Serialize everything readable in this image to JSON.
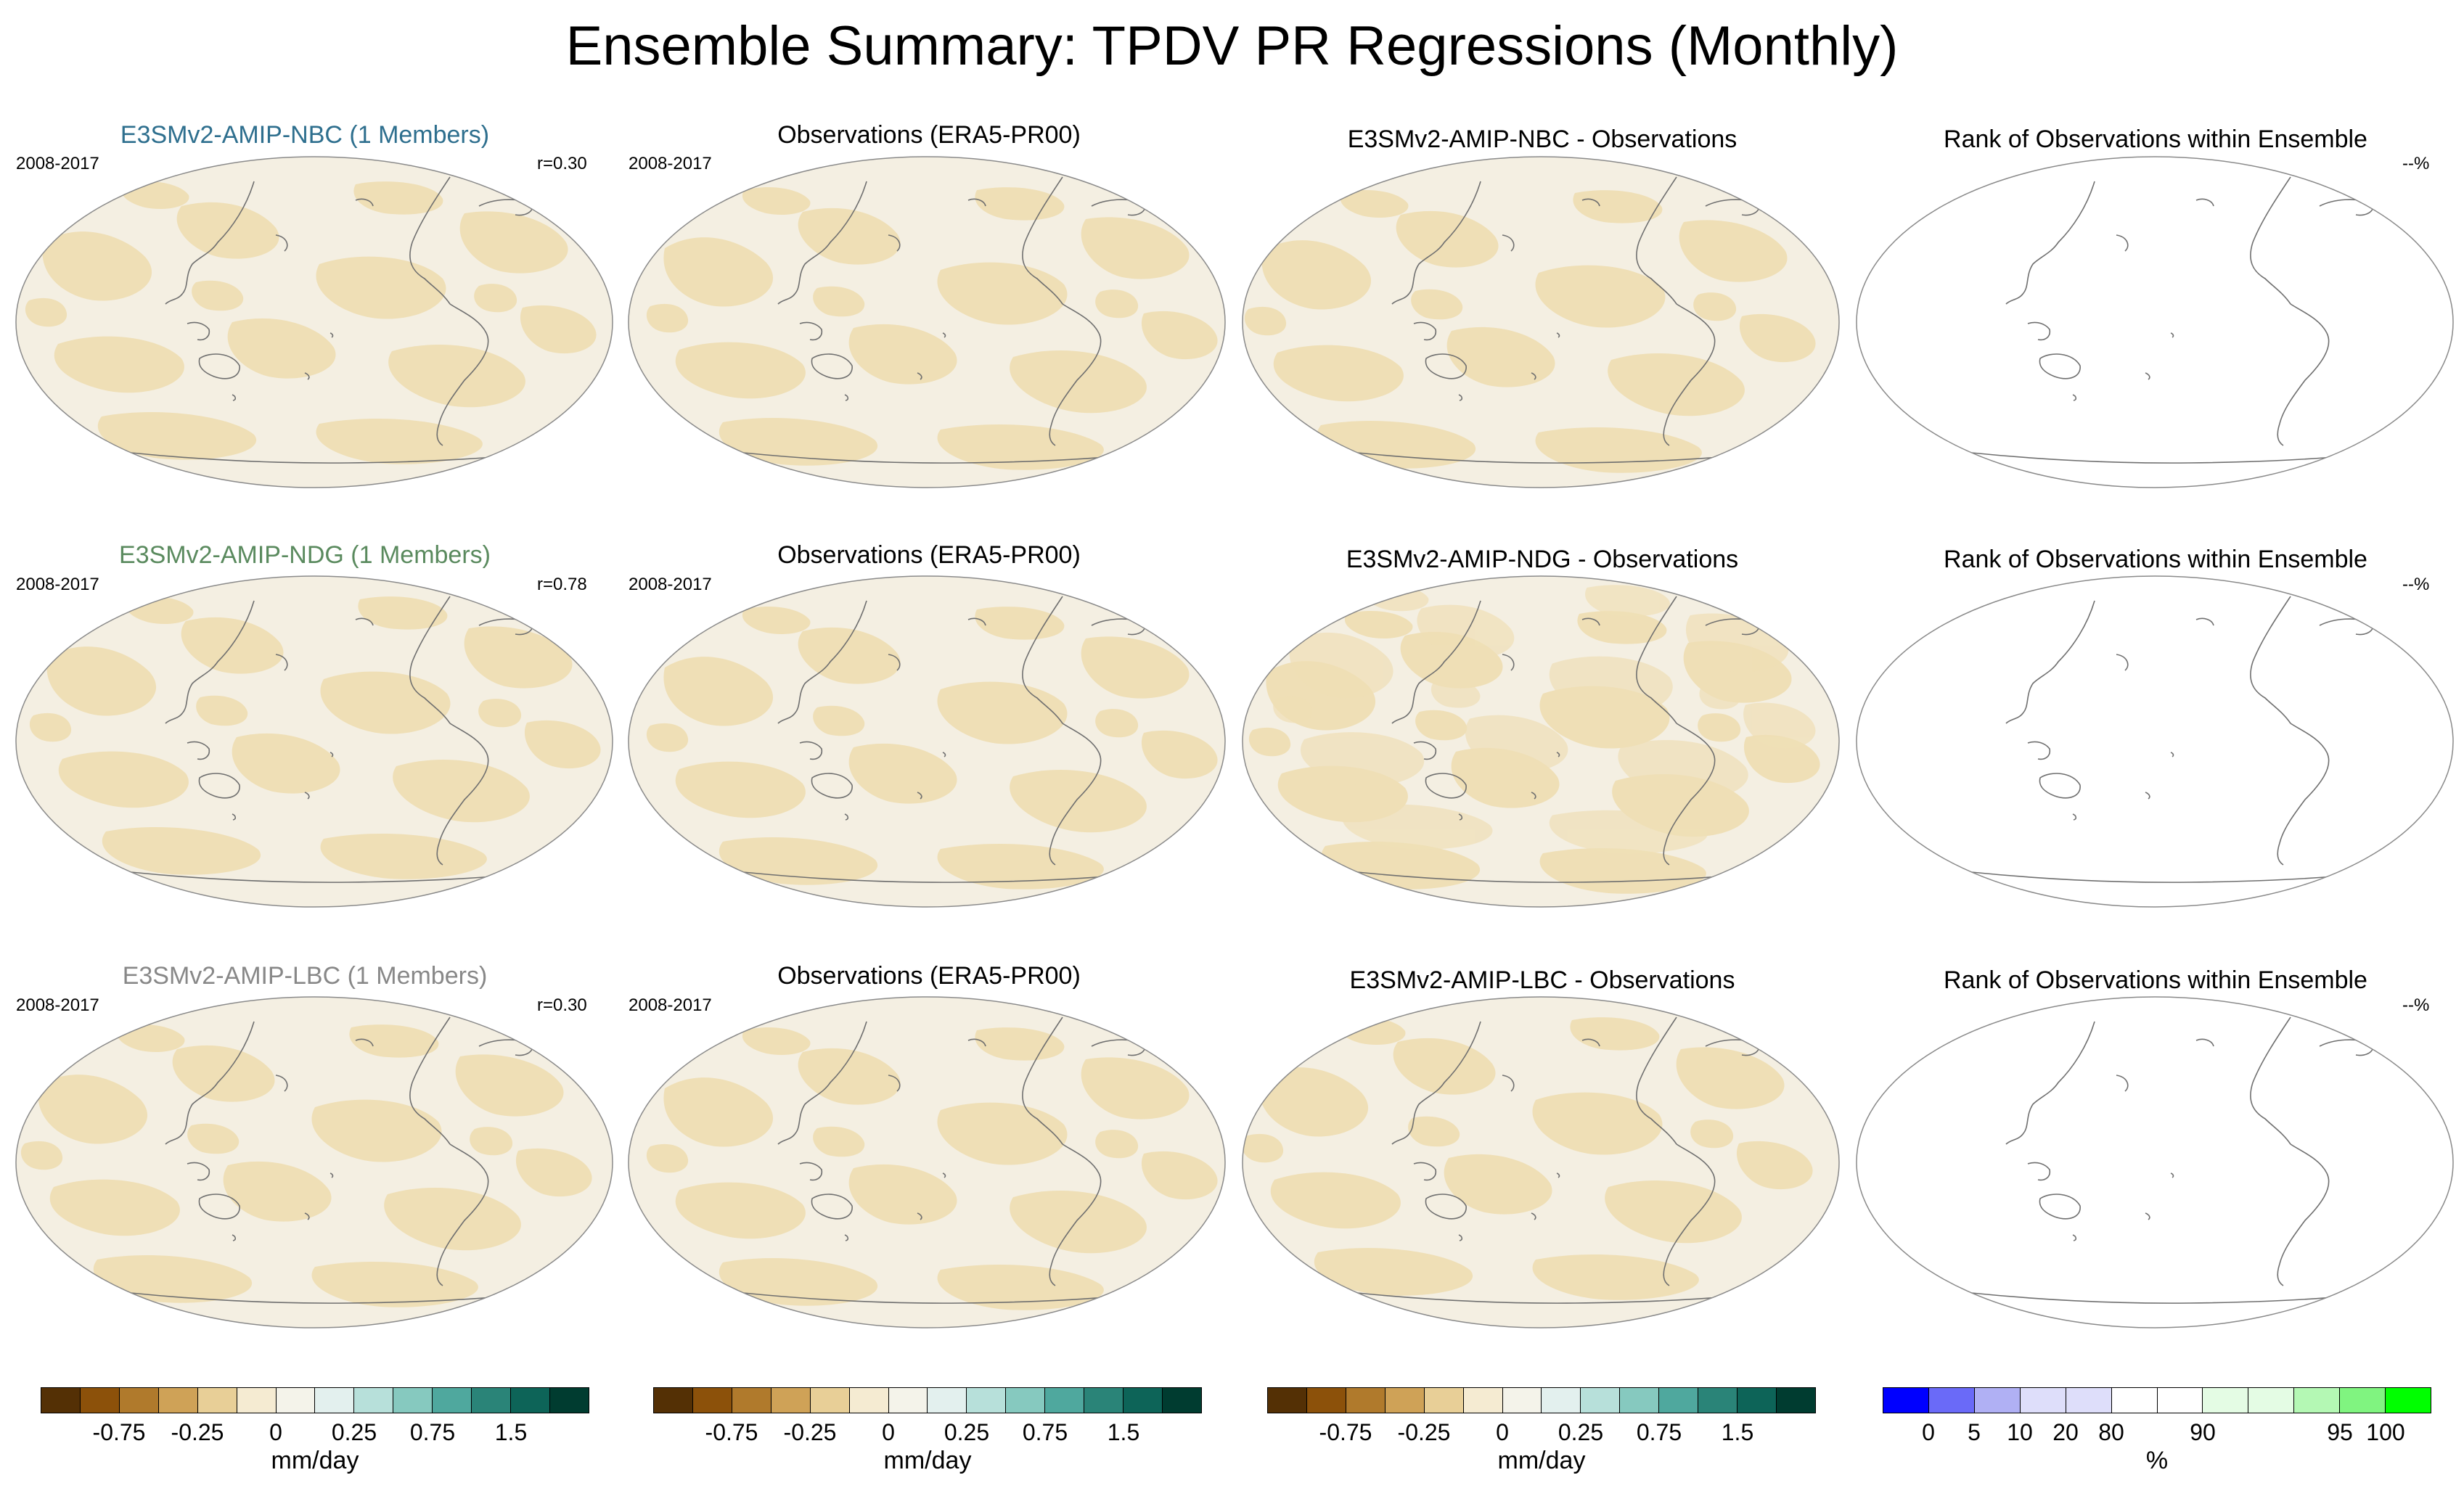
{
  "title": "Ensemble Summary: TPDV PR Regressions (Monthly)",
  "colors": {
    "nbc_title": "#2e6f8e",
    "ndg_title": "#5a8a5e",
    "lbc_title": "#888888",
    "map_light": "#f4efe2",
    "map_dark": "#efdfb6",
    "coast": "#6f6f6f",
    "ocean_white": "#ffffff"
  },
  "rows": [
    {
      "model_title": "E3SMv2-AMIP-NBC (1 Members)",
      "model_period": "2008-2017",
      "correlation": "r=0.30",
      "obs_title": "Observations (ERA5-PR00)",
      "obs_period": "2008-2017",
      "diff_title": "E3SMv2-AMIP-NBC - Observations",
      "rank_title": "Rank of Observations within Ensemble",
      "rank_value": "--%"
    },
    {
      "model_title": "E3SMv2-AMIP-NDG (1 Members)",
      "model_period": "2008-2017",
      "correlation": "r=0.78",
      "obs_title": "Observations (ERA5-PR00)",
      "obs_period": "2008-2017",
      "diff_title": "E3SMv2-AMIP-NDG - Observations",
      "rank_title": "Rank of Observations within Ensemble",
      "rank_value": "--%"
    },
    {
      "model_title": "E3SMv2-AMIP-LBC (1 Members)",
      "model_period": "2008-2017",
      "correlation": "r=0.30",
      "obs_title": "Observations (ERA5-PR00)",
      "obs_period": "2008-2017",
      "diff_title": "E3SMv2-AMIP-LBC - Observations",
      "rank_title": "Rank of Observations within Ensemble",
      "rank_value": "--%"
    }
  ],
  "chart_data": {
    "type": "heatmap",
    "title": "Ensemble Summary: TPDV PR Regressions (Monthly)",
    "projection": "global map (Pacific-centered)",
    "panels_per_row": [
      "model regression",
      "observations regression",
      "model minus observations",
      "rank of observations within ensemble"
    ],
    "value_colorbar": {
      "unit": "mm/day",
      "tick_labels": [
        "-0.75",
        "-0.25",
        "0",
        "0.25",
        "0.75",
        "1.5"
      ],
      "colors": [
        "#543005",
        "#8c510a",
        "#b07a2c",
        "#cfa257",
        "#e8cf97",
        "#f5ebd2",
        "#f4f3ea",
        "#e3f0ee",
        "#b7e0da",
        "#86c9bf",
        "#4fa89e",
        "#2a8478",
        "#0d6458",
        "#003c30"
      ]
    },
    "rank_colorbar": {
      "unit": "%",
      "tick_labels": [
        "0",
        "5",
        "10",
        "20",
        "80",
        "90",
        "95",
        "100"
      ],
      "colors": [
        "#0000ff",
        "#6a6af8",
        "#b0b0f4",
        "#dedefa",
        "#dedefa",
        "#ffffff",
        "#ffffff",
        "#e4fce4",
        "#e4fce4",
        "#b4f8b4",
        "#80f480",
        "#00ff00"
      ]
    }
  }
}
